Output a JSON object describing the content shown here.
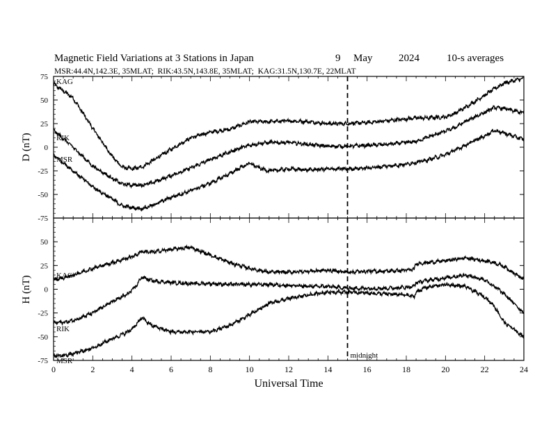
{
  "header": {
    "title": "Magnetic Field Variations at 3 Stations in Japan",
    "day": "9",
    "month": "May",
    "year": "2024",
    "avg": "10-s averages",
    "stations_info": "MSR:44.4N,142.3E, 35MLAT;  RIK:43.5N,143.8E, 35MLAT;  KAG:31.5N,130.7E, 22MLAT"
  },
  "colors": {
    "line": "#000000",
    "background": "#ffffff"
  },
  "chart_data": [
    {
      "type": "line",
      "panel": "top",
      "ylabel": "D (nT)",
      "xlabel": "",
      "xlim": [
        0,
        24
      ],
      "ylim": [
        -75,
        75
      ],
      "yticks": [
        -75,
        -50,
        -25,
        0,
        25,
        50,
        75
      ],
      "grid": false,
      "x": [
        0,
        1,
        2,
        3,
        3.5,
        4,
        4.5,
        5,
        6,
        7,
        8,
        9,
        9.5,
        10,
        10.5,
        11,
        12,
        13,
        14,
        15,
        16,
        17,
        18,
        18.5,
        19,
        20,
        20.5,
        21,
        22,
        22.5,
        23,
        24
      ],
      "series": [
        {
          "name": "KAG",
          "values": [
            67,
            52,
            20,
            -10,
            -21,
            -23,
            -21,
            -15,
            -2,
            10,
            16,
            19,
            23,
            27,
            27,
            27,
            28,
            27,
            25,
            25,
            26,
            28,
            30,
            31,
            31,
            32,
            36,
            42,
            55,
            62,
            68,
            73
          ]
        },
        {
          "name": "RIK",
          "values": [
            18,
            0,
            -20,
            -33,
            -39,
            -40,
            -40,
            -38,
            -30,
            -22,
            -13,
            -5,
            -1,
            2,
            4,
            5,
            5,
            3,
            1,
            1,
            2,
            3,
            5,
            6,
            10,
            17,
            21,
            27,
            37,
            42,
            41,
            36
          ]
        },
        {
          "name": "MSR",
          "values": [
            -8,
            -25,
            -42,
            -55,
            -62,
            -64,
            -65,
            -62,
            -53,
            -46,
            -38,
            -28,
            -22,
            -17,
            -22,
            -25,
            -23,
            -24,
            -23,
            -23,
            -22,
            -20,
            -18,
            -16,
            -14,
            -8,
            -3,
            2,
            12,
            18,
            15,
            8
          ]
        }
      ]
    },
    {
      "type": "line",
      "panel": "bottom",
      "ylabel": "H (nT)",
      "xlabel": "Universal Time",
      "xlim": [
        0,
        24
      ],
      "ylim": [
        -75,
        75
      ],
      "yticks": [
        -75,
        -50,
        -25,
        0,
        25,
        50
      ],
      "xticks": [
        0,
        2,
        4,
        6,
        8,
        10,
        12,
        14,
        16,
        18,
        20,
        22,
        24
      ],
      "grid": false,
      "x": [
        0,
        0.5,
        1,
        2,
        3,
        3.8,
        4.2,
        4.5,
        5,
        6,
        7,
        8,
        9,
        10,
        11,
        12,
        13,
        14,
        15,
        16,
        17,
        18,
        18.4,
        18.5,
        19,
        20,
        21,
        22,
        22.5,
        23,
        24
      ],
      "series": [
        {
          "name": "KAG",
          "values": [
            10,
            12,
            15,
            22,
            28,
            33,
            36,
            40,
            39,
            42,
            44,
            36,
            28,
            22,
            18,
            18,
            19,
            20,
            18,
            19,
            19,
            20,
            21,
            27,
            28,
            30,
            33,
            30,
            28,
            24,
            10
          ]
        },
        {
          "name": "RIK",
          "values": [
            -35,
            -35,
            -33,
            -25,
            -13,
            -5,
            3,
            13,
            9,
            7,
            6,
            6,
            5,
            5,
            5,
            4,
            3,
            3,
            1,
            1,
            1,
            2,
            3,
            7,
            9,
            12,
            15,
            10,
            3,
            -5,
            -25
          ]
        },
        {
          "name": "MSR",
          "values": [
            -70,
            -70,
            -68,
            -62,
            -52,
            -45,
            -38,
            -30,
            -38,
            -45,
            -45,
            -45,
            -38,
            -27,
            -15,
            -10,
            -6,
            -3,
            -3,
            -4,
            -5,
            -6,
            -8,
            -3,
            2,
            5,
            3,
            -8,
            -18,
            -35,
            -50
          ]
        }
      ]
    }
  ],
  "annotations": {
    "midnight_label": "midnight",
    "midnight_x": 15
  }
}
